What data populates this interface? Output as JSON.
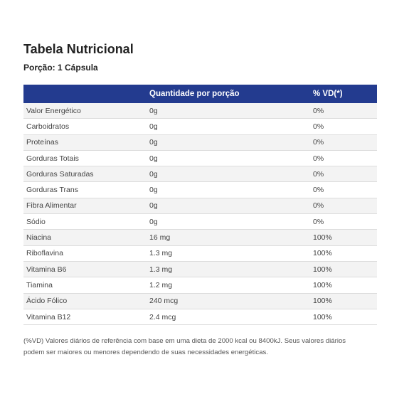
{
  "header": {
    "title": "Tabela Nutricional",
    "subtitle": "Porção: 1 Cápsula"
  },
  "table": {
    "columns": [
      "",
      "Quantidade por porção",
      "% VD(*)"
    ],
    "rows": [
      [
        "Valor Energético",
        "0g",
        "0%"
      ],
      [
        "Carboidratos",
        "0g",
        "0%"
      ],
      [
        "Proteínas",
        "0g",
        "0%"
      ],
      [
        "Gorduras Totais",
        "0g",
        "0%"
      ],
      [
        "Gorduras Saturadas",
        "0g",
        "0%"
      ],
      [
        "Gorduras Trans",
        "0g",
        "0%"
      ],
      [
        "Fibra Alimentar",
        "0g",
        "0%"
      ],
      [
        "Sódio",
        "0g",
        "0%"
      ],
      [
        "Niacina",
        "16 mg",
        "100%"
      ],
      [
        "Riboflavina",
        "1.3 mg",
        "100%"
      ],
      [
        "Vitamina B6",
        "1.3 mg",
        "100%"
      ],
      [
        "Tiamina",
        "1.2 mg",
        "100%"
      ],
      [
        "Ácido Fólico",
        "240 mcg",
        "100%"
      ],
      [
        "Vitamina B12",
        "2.4 mcg",
        "100%"
      ]
    ]
  },
  "footnote": [
    "(%VD) Valores diários de referência com base em uma dieta de 2000 kcal ou 8400kJ. Seus valores diários",
    "podem ser maiores ou menores dependendo de suas necessidades energéticas."
  ]
}
